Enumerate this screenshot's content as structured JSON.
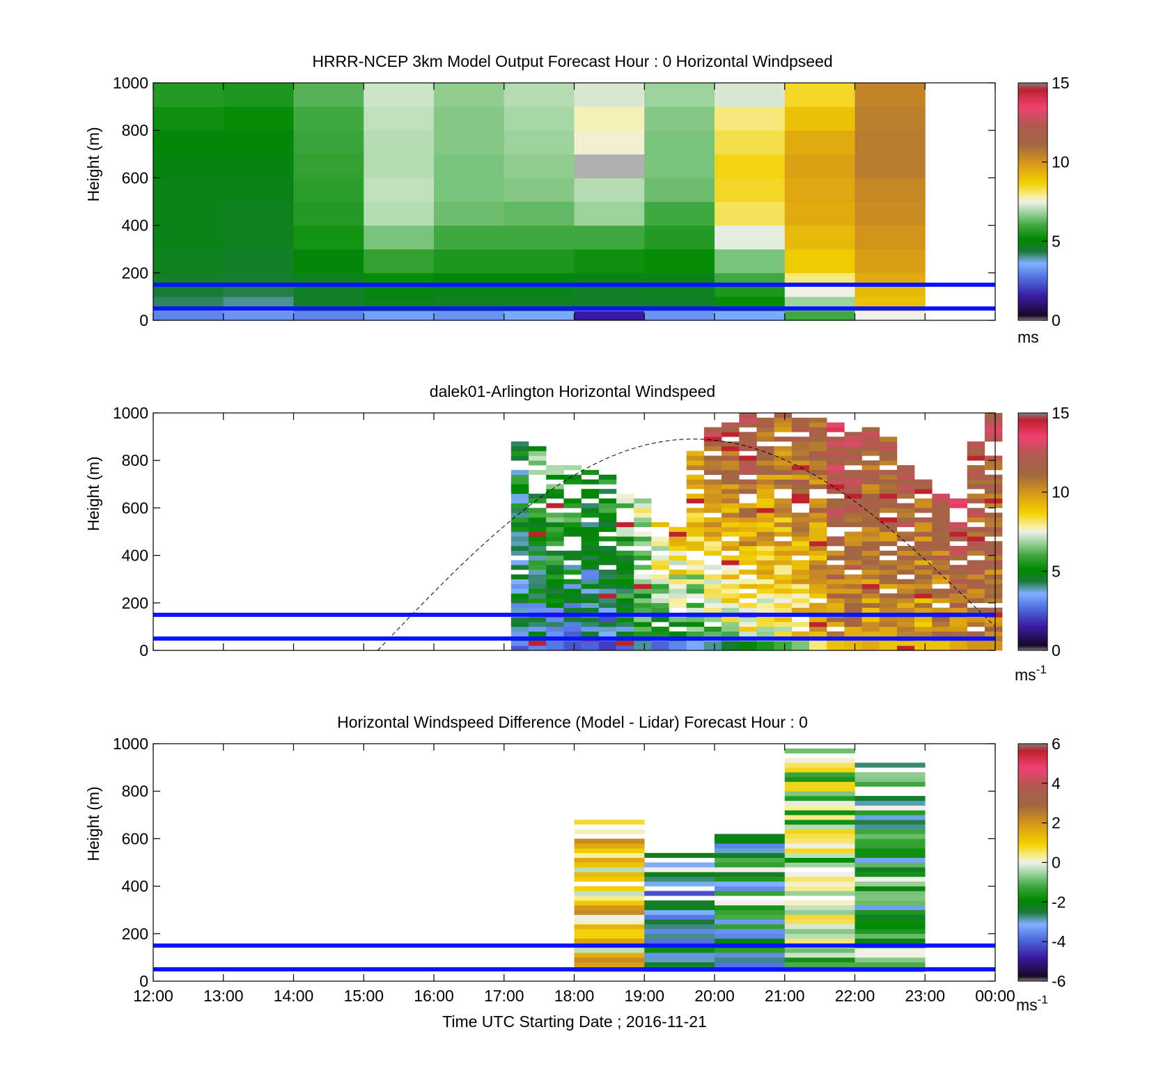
{
  "figure": {
    "xlabel": "Time UTC  Starting Date ; 2016-11-21",
    "x_ticks": [
      "12:00",
      "13:00",
      "14:00",
      "15:00",
      "16:00",
      "17:00",
      "18:00",
      "19:00",
      "20:00",
      "21:00",
      "22:00",
      "23:00",
      "00:00"
    ]
  },
  "chart_data": [
    {
      "type": "heatmap",
      "title": "HRRR-NCEP 3km Model Output   Forecast Hour : 0 Horizontal Windpseed",
      "xlabel": "",
      "ylabel": "Height (m)",
      "xlim_hours": [
        12,
        24
      ],
      "ylim": [
        0,
        1000
      ],
      "y_ticks": [
        "0",
        "200",
        "400",
        "600",
        "800",
        "1000"
      ],
      "colorbar": {
        "min": 0,
        "max": 15,
        "ticks": [
          "0",
          "5",
          "10",
          "15"
        ],
        "unit": "ms",
        "unit_sup": ""
      },
      "reference_lines_m": [
        150,
        50
      ],
      "grid": false,
      "column_hours": [
        12,
        13,
        14,
        15,
        16,
        17,
        18,
        19,
        20,
        21,
        22
      ],
      "row_edges_m": [
        0,
        40,
        60,
        100,
        150,
        200,
        300,
        400,
        500,
        600,
        700,
        800,
        900,
        1000
      ],
      "values": [
        [
          3.0,
          3.2,
          3.0,
          3.4,
          3.2,
          3.5,
          1.5,
          3.2,
          3.5,
          6.0,
          7.5
        ],
        [
          3.8,
          3.6,
          4.2,
          4.8,
          4.5,
          4.5,
          3.0,
          4.0,
          4.5,
          6.5,
          8.5
        ],
        [
          4.2,
          4.0,
          4.6,
          4.8,
          4.7,
          4.7,
          4.6,
          4.6,
          5.2,
          6.8,
          9.0
        ],
        [
          4.4,
          4.3,
          4.6,
          4.9,
          4.8,
          4.8,
          4.6,
          4.7,
          5.5,
          7.5,
          9.2
        ],
        [
          4.6,
          4.5,
          4.7,
          5.2,
          5.0,
          5.0,
          4.8,
          4.8,
          6.0,
          8.0,
          9.5
        ],
        [
          4.7,
          4.6,
          5.0,
          5.8,
          5.5,
          5.5,
          5.3,
          5.2,
          6.5,
          8.8,
          9.8
        ],
        [
          4.8,
          4.7,
          5.4,
          6.5,
          6.0,
          6.0,
          6.0,
          5.6,
          7.4,
          9.2,
          10.0
        ],
        [
          4.8,
          4.7,
          5.6,
          7.0,
          6.4,
          6.3,
          6.8,
          6.0,
          8.2,
          9.5,
          10.2
        ],
        [
          4.8,
          4.8,
          5.7,
          7.1,
          6.5,
          6.6,
          7.0,
          6.4,
          8.5,
          9.6,
          10.3
        ],
        [
          4.9,
          4.9,
          5.8,
          7.0,
          6.5,
          6.7,
          null,
          6.5,
          8.6,
          9.7,
          10.6
        ],
        [
          5.0,
          5.0,
          5.9,
          7.0,
          6.6,
          6.8,
          7.6,
          6.5,
          8.3,
          9.5,
          10.6
        ],
        [
          5.3,
          5.2,
          6.0,
          7.1,
          6.6,
          6.9,
          7.7,
          6.6,
          8.0,
          9.0,
          10.5
        ],
        [
          5.6,
          5.5,
          6.2,
          7.2,
          6.7,
          7.0,
          7.3,
          6.8,
          7.3,
          8.5,
          10.4
        ]
      ]
    },
    {
      "type": "heatmap",
      "title": "dalek01-Arlington  Horizontal Windspeed",
      "xlabel": "",
      "ylabel": "Height (m)",
      "xlim_hours": [
        12,
        24
      ],
      "ylim": [
        0,
        1000
      ],
      "y_ticks": [
        "0",
        "200",
        "400",
        "600",
        "800",
        "1000"
      ],
      "colorbar": {
        "min": 0,
        "max": 15,
        "ticks": [
          "0",
          "5",
          "10",
          "15"
        ],
        "unit": "ms",
        "unit_sup": "-1"
      },
      "reference_lines_m": [
        150,
        50
      ],
      "grid": false,
      "dashed_curve": {
        "start_hour": 15.2,
        "end_hour": 24.0,
        "peak_hour": 19.7,
        "peak_m": 890,
        "end_m": 100
      },
      "column_hours": [
        17.1,
        17.35,
        17.6,
        17.85,
        18.1,
        18.35,
        18.6,
        18.85,
        19.1,
        19.35,
        19.6,
        19.85,
        20.1,
        20.35,
        20.6,
        20.85,
        21.1,
        21.35,
        21.6,
        21.85,
        22.1,
        22.35,
        22.6,
        22.85,
        23.1,
        23.35,
        23.6,
        23.85
      ],
      "column_top_m": [
        900,
        860,
        790,
        780,
        760,
        740,
        670,
        650,
        550,
        520,
        850,
        950,
        980,
        1000,
        990,
        1000,
        980,
        980,
        960,
        940,
        940,
        900,
        780,
        720,
        680,
        650,
        890,
        1000
      ],
      "colors_per_column_range": [
        [
          2.8,
          5.5
        ],
        [
          2.5,
          6.5
        ],
        [
          2.3,
          7.0
        ],
        [
          1.8,
          6.5
        ],
        [
          2.0,
          6.0
        ],
        [
          1.5,
          6.2
        ],
        [
          2.0,
          7.8
        ],
        [
          3.5,
          8.5
        ],
        [
          2.0,
          10.0
        ],
        [
          2.5,
          10.5
        ],
        [
          3.0,
          11.5
        ],
        [
          3.5,
          13.0
        ],
        [
          4.0,
          13.0
        ],
        [
          4.5,
          13.5
        ],
        [
          5.0,
          12.5
        ],
        [
          5.5,
          12.0
        ],
        [
          6.0,
          12.5
        ],
        [
          7.5,
          12.0
        ],
        [
          8.5,
          13.5
        ],
        [
          9.0,
          12.5
        ],
        [
          9.0,
          12.0
        ],
        [
          8.5,
          12.0
        ],
        [
          9.0,
          12.5
        ],
        [
          8.5,
          12.0
        ],
        [
          8.5,
          12.5
        ],
        [
          9.0,
          13.5
        ],
        [
          9.5,
          12.5
        ],
        [
          9.5,
          12.5
        ]
      ]
    },
    {
      "type": "heatmap",
      "title": "Horizontal Windspeed Difference (Model - Lidar) Forecast Hour : 0",
      "xlabel": "Time UTC  Starting Date ; 2016-11-21",
      "ylabel": "Height (m)",
      "xlim_hours": [
        12,
        24
      ],
      "ylim": [
        0,
        1000
      ],
      "y_ticks": [
        "0",
        "200",
        "400",
        "600",
        "800",
        "1000"
      ],
      "colorbar": {
        "min": -6,
        "max": 6,
        "ticks": [
          "-6",
          "-4",
          "-2",
          "0",
          "2",
          "4",
          "6"
        ],
        "unit": "ms",
        "unit_sup": "-1"
      },
      "reference_lines_m": [
        150,
        50
      ],
      "grid": false,
      "column_hours": [
        18,
        19,
        20,
        21,
        22
      ],
      "column_extent_m": [
        [
          30,
          690
        ],
        [
          30,
          550
        ],
        [
          30,
          630
        ],
        [
          30,
          980
        ],
        [
          30,
          930
        ]
      ],
      "column_mean_diff": [
        1.0,
        -3.0,
        -2.5,
        -0.5,
        -2.0
      ]
    }
  ]
}
